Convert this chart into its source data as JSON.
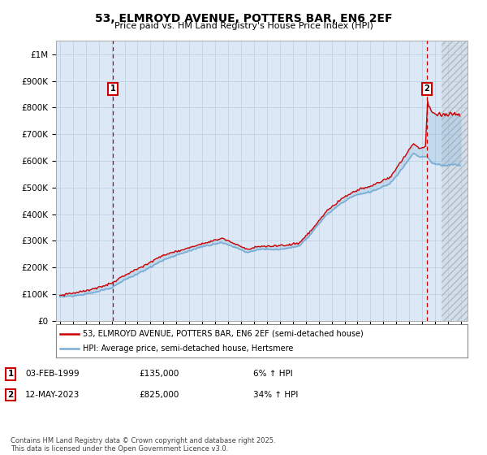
{
  "title": "53, ELMROYD AVENUE, POTTERS BAR, EN6 2EF",
  "subtitle": "Price paid vs. HM Land Registry's House Price Index (HPI)",
  "legend_line1": "53, ELMROYD AVENUE, POTTERS BAR, EN6 2EF (semi-detached house)",
  "legend_line2": "HPI: Average price, semi-detached house, Hertsmere",
  "annotation1": {
    "num": "1",
    "date": "03-FEB-1999",
    "price": "£135,000",
    "change": "6% ↑ HPI"
  },
  "annotation2": {
    "num": "2",
    "date": "12-MAY-2023",
    "price": "£825,000",
    "change": "34% ↑ HPI"
  },
  "footer": "Contains HM Land Registry data © Crown copyright and database right 2025.\nThis data is licensed under the Open Government Licence v3.0.",
  "hpi_color": "#7aadd4",
  "price_color": "#cc0000",
  "plot_bg": "#dce8f5",
  "grid_color": "#b8cfe0",
  "ylim": [
    0,
    1050000
  ],
  "yticks": [
    0,
    100000,
    200000,
    300000,
    400000,
    500000,
    600000,
    700000,
    800000,
    900000,
    1000000
  ],
  "xlim_start": 1994.7,
  "xlim_end": 2026.5,
  "sale1_year": 1999.09,
  "sale1_price": 135000,
  "sale2_year": 2023.37,
  "sale2_price": 825000,
  "hatch_start": 2024.5
}
